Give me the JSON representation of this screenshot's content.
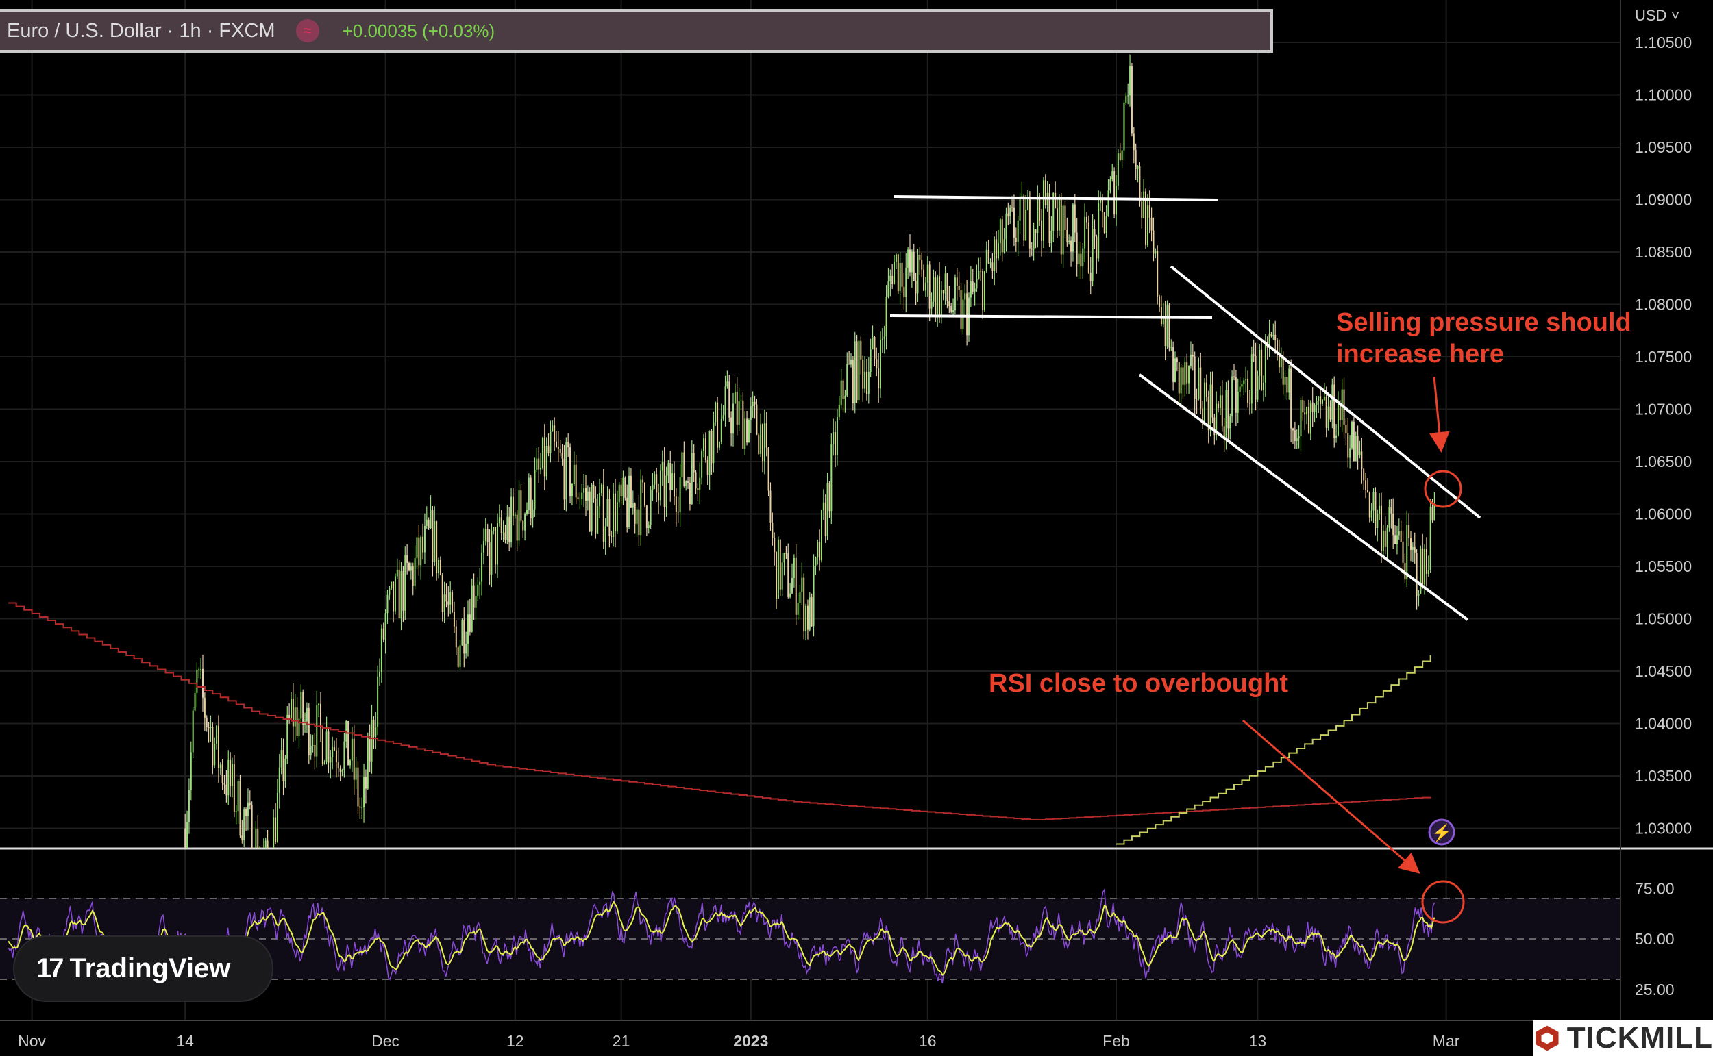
{
  "header": {
    "title": "Euro / U.S. Dollar · 1h · FXCM",
    "change": "+0.00035 (+0.03%)",
    "currency": "USD"
  },
  "annotations": {
    "selling_line1": "Selling pressure should",
    "selling_line2": "increase here",
    "rsi_note": "RSI close to overbought",
    "color": "#e8412c"
  },
  "branding": {
    "tradingview": "TradingView",
    "tickmill": "TICKMILL"
  },
  "chart_data": [
    {
      "type": "candlestick",
      "title": "Euro / U.S. Dollar · 1h · FXCM",
      "price_ticks": [
        "1.10500",
        "1.10000",
        "1.09500",
        "1.09000",
        "1.08500",
        "1.08000",
        "1.07500",
        "1.07000",
        "1.06500",
        "1.06000",
        "1.05500",
        "1.05000",
        "1.04500",
        "1.04000",
        "1.03500",
        "1.03000"
      ],
      "ylim": [
        1.0285,
        1.1065
      ],
      "x_ticks": [
        {
          "label": "Nov",
          "date": "2022-11-01"
        },
        {
          "label": "14",
          "date": "2022-11-14"
        },
        {
          "label": "Dec",
          "date": "2022-12-01"
        },
        {
          "label": "12",
          "date": "2022-12-12"
        },
        {
          "label": "21",
          "date": "2022-12-21"
        },
        {
          "label": "2023",
          "date": "2023-01-01"
        },
        {
          "label": "16",
          "date": "2023-01-16"
        },
        {
          "label": "Feb",
          "date": "2023-02-01"
        },
        {
          "label": "13",
          "date": "2023-02-13"
        },
        {
          "label": "Mar",
          "date": "2023-03-01"
        }
      ],
      "price_path": [
        [
          "2022-11-14",
          1.03
        ],
        [
          "2022-11-15",
          1.044
        ],
        [
          "2022-11-17",
          1.036
        ],
        [
          "2022-11-21",
          1.026
        ],
        [
          "2022-11-23",
          1.041
        ],
        [
          "2022-11-28",
          1.037
        ],
        [
          "2022-11-29",
          1.031
        ],
        [
          "2022-12-01",
          1.05
        ],
        [
          "2022-12-05",
          1.058
        ],
        [
          "2022-12-07",
          1.047
        ],
        [
          "2022-12-09",
          1.055
        ],
        [
          "2022-12-13",
          1.061
        ],
        [
          "2022-12-15",
          1.066
        ],
        [
          "2022-12-19",
          1.06
        ],
        [
          "2022-12-23",
          1.061
        ],
        [
          "2022-12-27",
          1.064
        ],
        [
          "2022-12-30",
          1.07
        ],
        [
          "2023-01-02",
          1.068
        ],
        [
          "2023-01-03",
          1.055
        ],
        [
          "2023-01-05",
          1.053
        ],
        [
          "2023-01-06",
          1.05
        ],
        [
          "2023-01-09",
          1.073
        ],
        [
          "2023-01-12",
          1.075
        ],
        [
          "2023-01-13",
          1.084
        ],
        [
          "2023-01-16",
          1.082
        ],
        [
          "2023-01-19",
          1.079
        ],
        [
          "2023-01-23",
          1.087
        ],
        [
          "2023-01-26",
          1.089
        ],
        [
          "2023-01-30",
          1.085
        ],
        [
          "2023-02-01",
          1.092
        ],
        [
          "2023-02-02",
          1.102
        ],
        [
          "2023-02-03",
          1.091
        ],
        [
          "2023-02-06",
          1.073
        ],
        [
          "2023-02-08",
          1.072
        ],
        [
          "2023-02-10",
          1.069
        ],
        [
          "2023-02-14",
          1.075
        ],
        [
          "2023-02-17",
          1.068
        ],
        [
          "2023-02-20",
          1.07
        ],
        [
          "2023-02-23",
          1.06
        ],
        [
          "2023-02-27",
          1.054
        ],
        [
          "2023-02-28",
          1.061
        ]
      ],
      "ma_red": [
        [
          "2022-10-30",
          1.0515
        ],
        [
          "2022-11-20",
          1.041
        ],
        [
          "2022-12-10",
          1.036
        ],
        [
          "2023-01-05",
          1.0325
        ],
        [
          "2023-01-25",
          1.0308
        ],
        [
          "2023-02-10",
          1.0318
        ],
        [
          "2023-02-28",
          1.033
        ]
      ],
      "ma_yellow": [
        [
          "2023-02-01",
          1.0285
        ],
        [
          "2023-02-10",
          1.0335
        ],
        [
          "2023-02-20",
          1.04
        ],
        [
          "2023-02-28",
          1.0468
        ]
      ],
      "colors": {
        "up": "#9adf7a",
        "down": "#e8d0a0",
        "ma_red": "#b52a2a",
        "ma_yellow": "#c8d060",
        "lines": "#ffffff"
      }
    },
    {
      "type": "line",
      "title": "RSI",
      "y_ticks": [
        "75.00",
        "50.00",
        "25.00"
      ],
      "ylim": [
        15,
        90
      ],
      "bands": [
        30,
        70
      ],
      "colors": {
        "rsi": "#8a4ad8",
        "signal": "#e6f04a"
      }
    }
  ]
}
